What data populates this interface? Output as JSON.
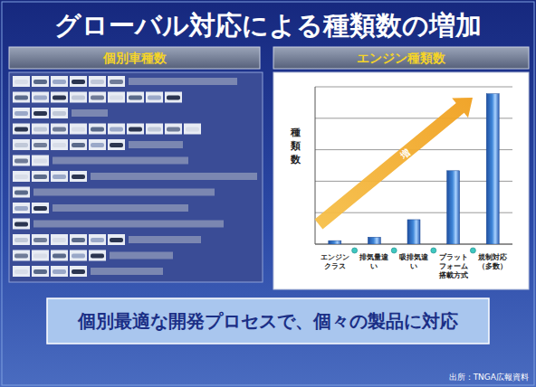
{
  "header": {
    "title": "グローバル対応による種類数の増加"
  },
  "left_panel": {
    "title": "個別車種数"
  },
  "chart_data": {
    "type": "bar",
    "title": "エンジン種類数",
    "y_label": "種類数",
    "annotation": "増",
    "categories": [
      "エンジンクラス",
      "排気量違い",
      "吸排気違い",
      "プラットフォーム搭載方式",
      "規制対応（多数）"
    ],
    "values": [
      1,
      2,
      7,
      21,
      43
    ],
    "color": "#3f86d8",
    "ylim": [
      0,
      45
    ],
    "yticks": [
      0,
      9,
      18,
      27,
      36,
      45
    ],
    "grid": true,
    "tick_labels": false
  },
  "footer": {
    "message": "個別最適な開発プロセスで、個々の製品に対応",
    "source": "出所：TNGA広報資料"
  }
}
